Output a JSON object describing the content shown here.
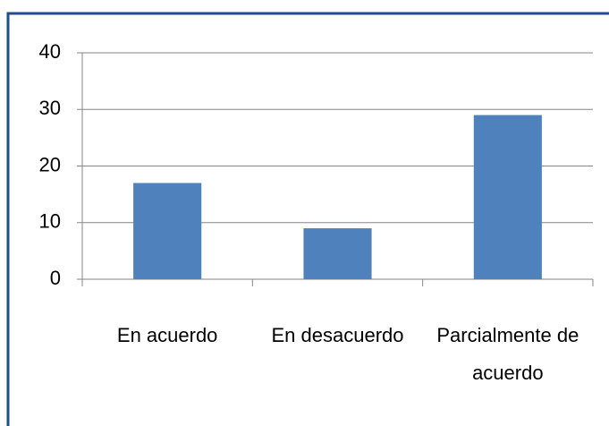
{
  "chart_data": {
    "type": "bar",
    "categories": [
      "En acuerdo",
      "En desacuerdo",
      "Parcialmente de acuerdo"
    ],
    "values": [
      17,
      9,
      29
    ],
    "color": "#4f81bd",
    "ylim": [
      0,
      40
    ],
    "yticks": [
      0,
      10,
      20,
      30,
      40
    ],
    "grid": true
  }
}
